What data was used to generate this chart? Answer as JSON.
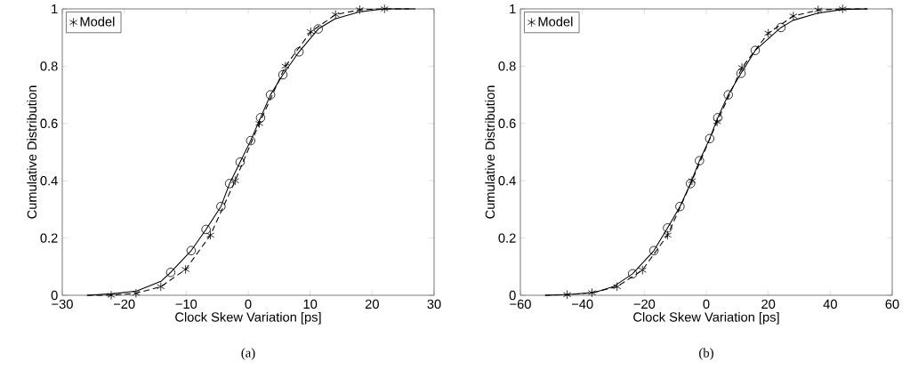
{
  "chart_data": [
    {
      "type": "line",
      "xlabel": "Clock Skew Variation [ps]",
      "ylabel": "Cumulative Distribution",
      "annotations": [
        "(a)"
      ],
      "xlim": [
        -30,
        30
      ],
      "ylim": [
        0,
        1
      ],
      "xticks": [
        {
          "value": -30,
          "label": "−30"
        },
        {
          "value": -20,
          "label": "−20"
        },
        {
          "value": -10,
          "label": "−10"
        },
        0,
        10,
        20,
        30
      ],
      "yticks": [
        0,
        0.2,
        0.4,
        0.6,
        0.8,
        1
      ],
      "grid": false,
      "legend": "top left",
      "series": [
        {
          "line_style": "solid",
          "marker": "none",
          "color": "#000000",
          "x": [
            -26,
            -22,
            -18,
            -14,
            -12.5,
            -9.2,
            -6.8,
            -4.4,
            -3.0,
            -1.3,
            0.4,
            2.0,
            3.6,
            5.6,
            8.2,
            11.3,
            14,
            18,
            22,
            27
          ],
          "values": [
            0,
            0.005,
            0.015,
            0.05,
            0.08,
            0.156,
            0.23,
            0.31,
            0.39,
            0.465,
            0.54,
            0.62,
            0.7,
            0.77,
            0.85,
            0.93,
            0.965,
            0.99,
            1.0,
            1.0
          ]
        },
        {
          "line_style": "dashed",
          "marker": "none",
          "color": "#000000",
          "x": [
            -26,
            -22.1,
            -18.1,
            -14.1,
            -10.1,
            -6.1,
            -2.1,
            1.8,
            6.0,
            10.1,
            14.1,
            18.0,
            22.0,
            26
          ],
          "values": [
            0,
            0,
            0.007,
            0.03,
            0.09,
            0.21,
            0.4,
            0.6,
            0.8,
            0.92,
            0.98,
            0.997,
            1.0,
            1.0
          ]
        },
        {
          "type": "scatter",
          "marker": "circle",
          "color": "#000000",
          "x": [
            -12.5,
            -9.2,
            -6.8,
            -4.4,
            -3.0,
            -1.3,
            0.4,
            2.0,
            3.6,
            5.6,
            8.2,
            11.3
          ],
          "values": [
            0.08,
            0.156,
            0.23,
            0.31,
            0.39,
            0.465,
            0.54,
            0.62,
            0.7,
            0.77,
            0.85,
            0.93
          ]
        },
        {
          "type": "scatter",
          "name": "Model",
          "marker": "cross",
          "color": "#000000",
          "x": [
            -22.1,
            -18.1,
            -14.1,
            -10.1,
            -6.1,
            -2.1,
            1.8,
            6.0,
            10.1,
            14.1,
            18.0,
            22.0
          ],
          "values": [
            0,
            0.007,
            0.03,
            0.09,
            0.21,
            0.4,
            0.6,
            0.8,
            0.92,
            0.98,
            0.997,
            1.0
          ]
        }
      ]
    },
    {
      "type": "line",
      "xlabel": "Clock Skew Variation [ps]",
      "ylabel": "Cumulative Distribution",
      "annotations": [
        "(b)"
      ],
      "xlim": [
        -60,
        60
      ],
      "ylim": [
        0,
        1
      ],
      "xticks": [
        {
          "value": -60,
          "label": "−60"
        },
        {
          "value": -40,
          "label": "−40"
        },
        {
          "value": -20,
          "label": "−20"
        },
        0,
        20,
        40,
        60
      ],
      "yticks": [
        0,
        0.2,
        0.4,
        0.6,
        0.8,
        1
      ],
      "grid": false,
      "legend": "top left",
      "series": [
        {
          "line_style": "solid",
          "marker": "none",
          "color": "#000000",
          "x": [
            -52,
            -44,
            -36,
            -30,
            -23.8,
            -16.9,
            -12.5,
            -8.5,
            -5.1,
            -2.2,
            1.1,
            3.7,
            7.1,
            11.2,
            15.8,
            24.1,
            28,
            36,
            44,
            52
          ],
          "values": [
            0,
            0.003,
            0.01,
            0.03,
            0.075,
            0.156,
            0.235,
            0.31,
            0.39,
            0.47,
            0.547,
            0.62,
            0.7,
            0.775,
            0.855,
            0.935,
            0.96,
            0.985,
            0.998,
            1.0
          ]
        },
        {
          "line_style": "dashed",
          "marker": "none",
          "color": "#000000",
          "x": [
            -52,
            -44.9,
            -36.9,
            -28.8,
            -20.6,
            -12.5,
            -4.6,
            3.5,
            11.5,
            20.0,
            28.1,
            36.1,
            44.0,
            52
          ],
          "values": [
            0,
            0.002,
            0.009,
            0.03,
            0.088,
            0.21,
            0.4,
            0.606,
            0.795,
            0.915,
            0.975,
            0.996,
            1.0,
            1.0
          ]
        },
        {
          "type": "scatter",
          "marker": "circle",
          "color": "#000000",
          "x": [
            -23.8,
            -16.9,
            -12.5,
            -8.5,
            -5.1,
            -2.2,
            1.1,
            3.7,
            7.1,
            11.2,
            15.8,
            24.1
          ],
          "values": [
            0.075,
            0.156,
            0.235,
            0.31,
            0.39,
            0.47,
            0.547,
            0.62,
            0.7,
            0.775,
            0.855,
            0.935
          ]
        },
        {
          "type": "scatter",
          "name": "Model",
          "marker": "cross",
          "color": "#000000",
          "x": [
            -44.9,
            -36.9,
            -28.8,
            -20.6,
            -12.5,
            -4.6,
            3.5,
            11.5,
            20.0,
            28.1,
            36.1,
            44.0
          ],
          "values": [
            0.002,
            0.009,
            0.03,
            0.088,
            0.21,
            0.4,
            0.606,
            0.795,
            0.915,
            0.975,
            0.996,
            1.0
          ]
        }
      ]
    }
  ]
}
